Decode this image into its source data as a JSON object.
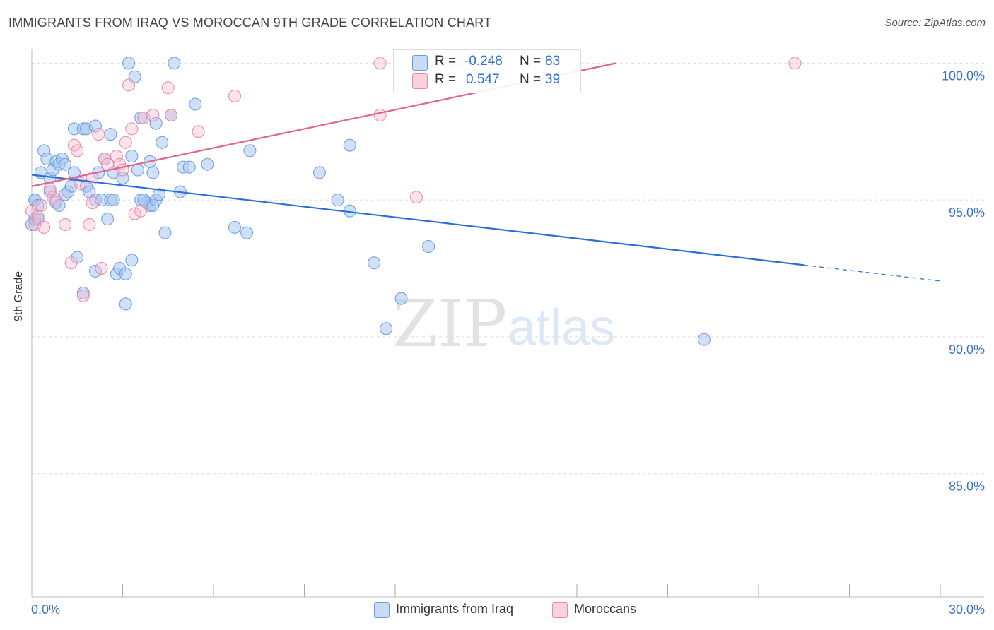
{
  "title": "IMMIGRANTS FROM IRAQ VS MOROCCAN 9TH GRADE CORRELATION CHART",
  "source": "Source: ZipAtlas.com",
  "watermark": {
    "zip": "ZIP",
    "atlas": "atlas"
  },
  "colors": {
    "blue_fill": "#a8c6f0",
    "blue_stroke": "#6c9be0",
    "blue_line": "#2b6fd6",
    "pink_fill": "#f5b8cc",
    "pink_stroke": "#e889a8",
    "pink_line": "#e0648f",
    "axis_text": "#3d72c9",
    "grid": "#dddddd"
  },
  "legend_stats": [
    {
      "r_label": "R =",
      "r_value": "-0.248",
      "n_label": "N =",
      "n_value": "83",
      "color": "blue"
    },
    {
      "r_label": "R =",
      "r_value": "0.547",
      "n_label": "N =",
      "n_value": "39",
      "color": "pink"
    }
  ],
  "bottom_legend": [
    {
      "label": "Immigrants from Iraq",
      "color": "blue"
    },
    {
      "label": "Moroccans",
      "color": "pink"
    }
  ],
  "chart_data": {
    "type": "scatter",
    "title": "IMMIGRANTS FROM IRAQ VS MOROCCAN 9TH GRADE CORRELATION CHART",
    "xlabel": "",
    "ylabel": "9th Grade",
    "xlim": [
      0,
      30
    ],
    "ylim": [
      80.5,
      100.5
    ],
    "x_tick_labels": [
      "0.0%",
      "30.0%"
    ],
    "y_ticks": [
      100,
      95,
      90,
      85
    ],
    "y_tick_labels": [
      "100.0%",
      "95.0%",
      "90.0%",
      "85.0%"
    ],
    "series": [
      {
        "name": "Immigrants from Iraq",
        "color": "blue",
        "points": [
          [
            0.0,
            94.1
          ],
          [
            0.1,
            95.0
          ],
          [
            0.3,
            96.0
          ],
          [
            0.4,
            96.8
          ],
          [
            0.5,
            96.5
          ],
          [
            0.6,
            95.8
          ],
          [
            0.7,
            96.1
          ],
          [
            0.8,
            96.4
          ],
          [
            0.9,
            96.3
          ],
          [
            1.0,
            96.5
          ],
          [
            1.1,
            96.3
          ],
          [
            1.2,
            95.3
          ],
          [
            1.3,
            95.5
          ],
          [
            1.4,
            96.0
          ],
          [
            1.4,
            97.6
          ],
          [
            1.7,
            97.6
          ],
          [
            1.8,
            97.6
          ],
          [
            2.1,
            97.7
          ],
          [
            2.6,
            97.4
          ],
          [
            3.2,
            100.0
          ],
          [
            3.4,
            99.5
          ],
          [
            3.6,
            98.0
          ],
          [
            4.1,
            97.8
          ],
          [
            4.3,
            97.1
          ],
          [
            4.6,
            98.1
          ],
          [
            4.7,
            100.0
          ],
          [
            5.4,
            98.5
          ],
          [
            2.2,
            96.0
          ],
          [
            2.4,
            96.5
          ],
          [
            2.7,
            96.0
          ],
          [
            3.0,
            95.8
          ],
          [
            3.3,
            96.6
          ],
          [
            3.5,
            96.1
          ],
          [
            3.9,
            96.4
          ],
          [
            4.0,
            96.0
          ],
          [
            5.0,
            96.2
          ],
          [
            5.2,
            96.2
          ],
          [
            5.8,
            96.3
          ],
          [
            7.2,
            96.8
          ],
          [
            0.1,
            95.0
          ],
          [
            0.2,
            94.8
          ],
          [
            0.6,
            95.3
          ],
          [
            0.8,
            94.9
          ],
          [
            0.9,
            94.8
          ],
          [
            1.8,
            95.5
          ],
          [
            1.9,
            95.3
          ],
          [
            2.1,
            95.0
          ],
          [
            2.3,
            95.0
          ],
          [
            2.6,
            95.0
          ],
          [
            2.7,
            95.0
          ],
          [
            3.6,
            95.0
          ],
          [
            3.8,
            94.9
          ],
          [
            3.9,
            94.8
          ],
          [
            4.0,
            94.8
          ],
          [
            4.1,
            95.0
          ],
          [
            4.2,
            95.2
          ],
          [
            4.9,
            95.3
          ],
          [
            0.1,
            94.3
          ],
          [
            0.2,
            94.3
          ],
          [
            2.5,
            94.3
          ],
          [
            4.4,
            93.8
          ],
          [
            6.7,
            94.0
          ],
          [
            7.1,
            93.8
          ],
          [
            1.5,
            92.9
          ],
          [
            2.1,
            92.4
          ],
          [
            2.8,
            92.3
          ],
          [
            2.9,
            92.5
          ],
          [
            3.1,
            92.3
          ],
          [
            3.3,
            92.8
          ],
          [
            1.7,
            91.6
          ],
          [
            3.1,
            91.2
          ],
          [
            9.5,
            96.0
          ],
          [
            10.1,
            95.0
          ],
          [
            10.5,
            97.0
          ],
          [
            10.5,
            94.6
          ],
          [
            11.3,
            92.7
          ],
          [
            12.2,
            91.4
          ],
          [
            11.7,
            90.3
          ],
          [
            13.1,
            93.3
          ],
          [
            14.0,
            100.0
          ],
          [
            22.2,
            89.9
          ],
          [
            3.7,
            95.0
          ],
          [
            1.1,
            95.2
          ]
        ]
      },
      {
        "name": "Moroccans",
        "color": "pink",
        "points": [
          [
            0.0,
            94.6
          ],
          [
            0.1,
            94.1
          ],
          [
            0.2,
            94.4
          ],
          [
            0.3,
            94.8
          ],
          [
            0.4,
            94.0
          ],
          [
            0.6,
            95.4
          ],
          [
            0.7,
            95.1
          ],
          [
            0.8,
            95.0
          ],
          [
            1.1,
            94.1
          ],
          [
            1.3,
            92.7
          ],
          [
            1.4,
            97.0
          ],
          [
            1.5,
            96.8
          ],
          [
            1.6,
            95.6
          ],
          [
            1.7,
            91.5
          ],
          [
            1.9,
            94.1
          ],
          [
            2.0,
            95.8
          ],
          [
            2.0,
            94.9
          ],
          [
            2.2,
            97.4
          ],
          [
            2.3,
            92.5
          ],
          [
            2.4,
            96.5
          ],
          [
            2.5,
            96.3
          ],
          [
            2.8,
            96.6
          ],
          [
            2.9,
            96.3
          ],
          [
            3.0,
            96.1
          ],
          [
            3.1,
            97.1
          ],
          [
            3.2,
            99.2
          ],
          [
            3.3,
            97.6
          ],
          [
            3.4,
            94.5
          ],
          [
            3.6,
            94.6
          ],
          [
            3.7,
            98.0
          ],
          [
            4.0,
            98.1
          ],
          [
            4.5,
            99.1
          ],
          [
            4.6,
            98.1
          ],
          [
            5.5,
            97.5
          ],
          [
            6.7,
            98.8
          ],
          [
            11.5,
            98.1
          ],
          [
            12.7,
            95.1
          ],
          [
            11.5,
            100.0
          ],
          [
            25.2,
            100.0
          ]
        ]
      }
    ],
    "trend_lines": [
      {
        "series": "Immigrants from Iraq",
        "x": [
          0.0,
          25.5
        ],
        "y": [
          95.92,
          92.62
        ],
        "dashed_to_x": 30.0
      },
      {
        "series": "Moroccans",
        "x": [
          0.0,
          19.3
        ],
        "y": [
          95.5,
          100.0
        ]
      }
    ],
    "grid": true,
    "legend_position": "top-center"
  }
}
